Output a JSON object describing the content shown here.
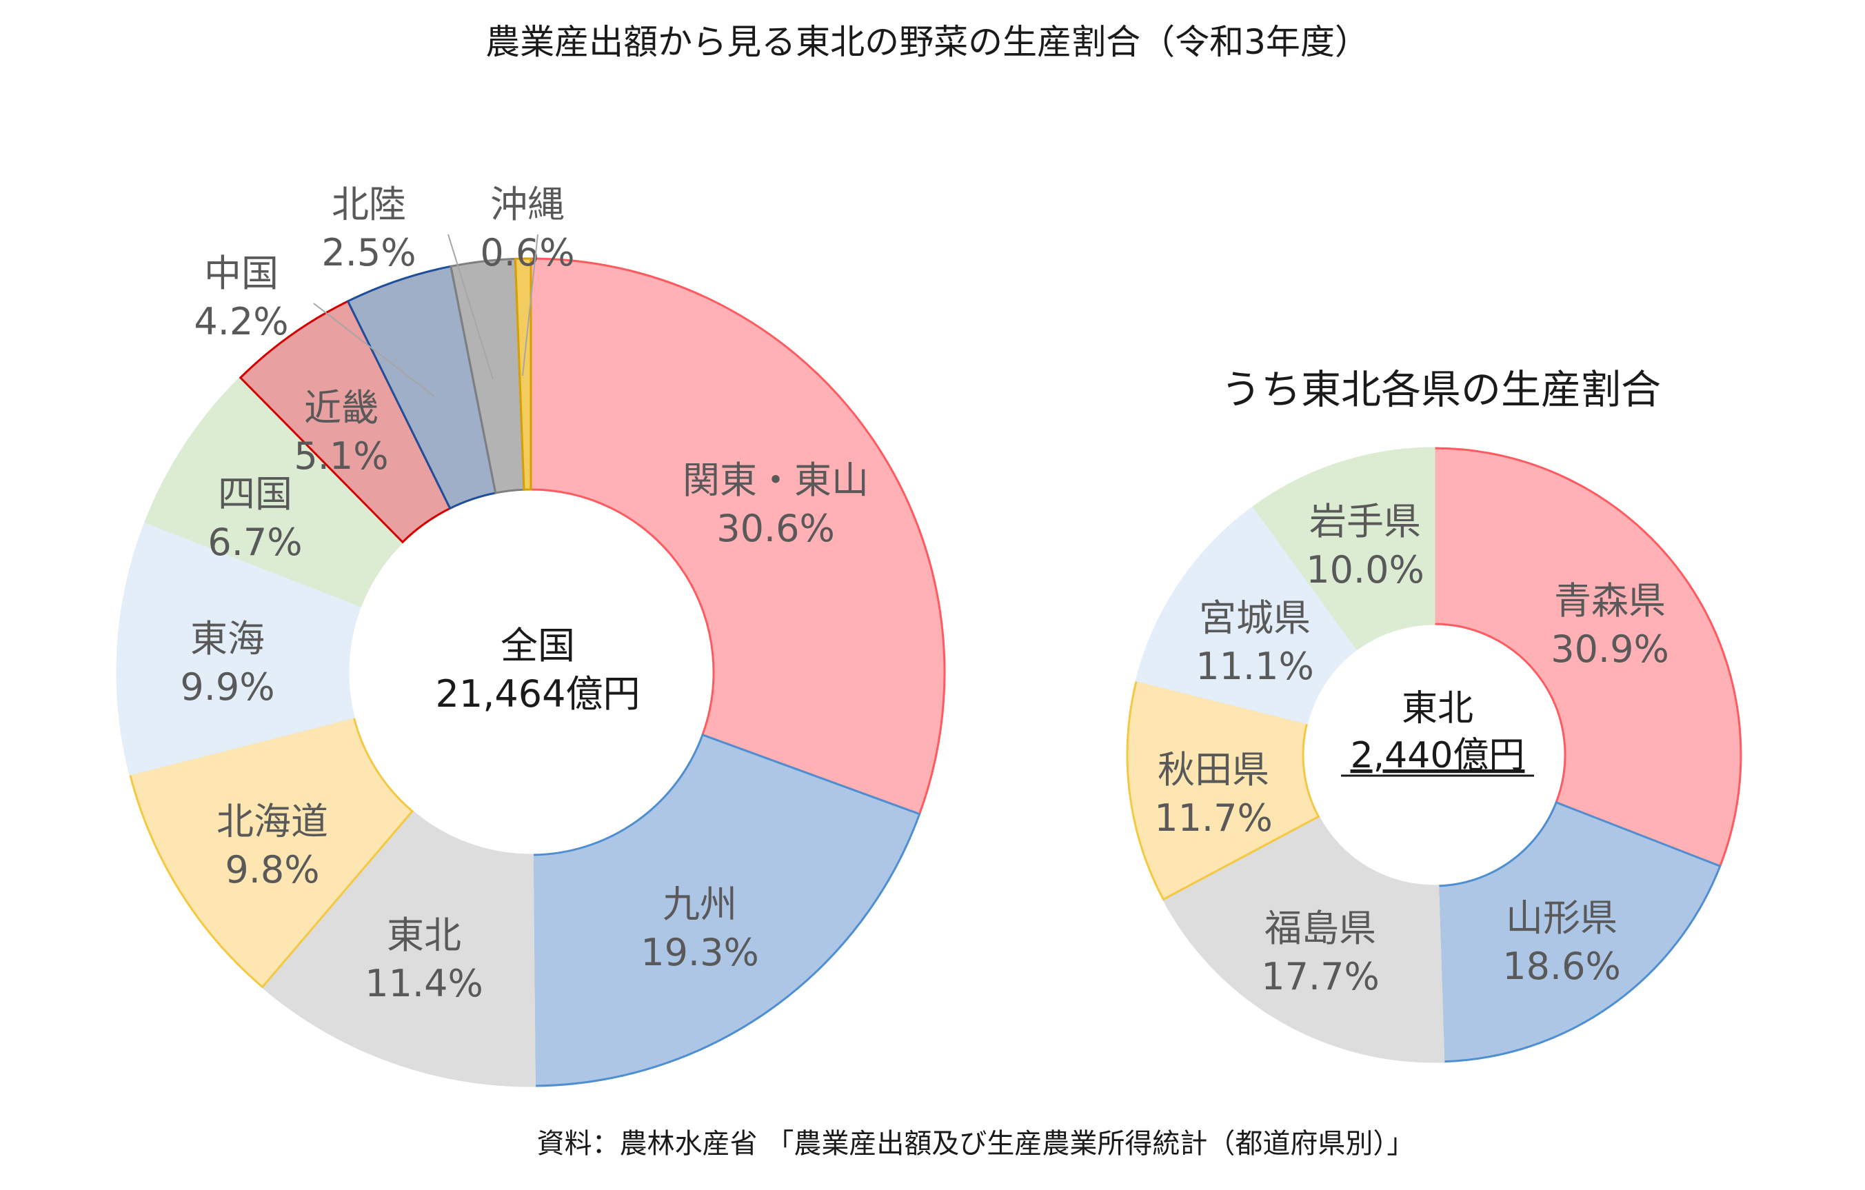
{
  "title": "農業産出額から見る東北の野菜の生産割合（令和3年度）",
  "source": "資料：農林水産省 「農業産出額及び生産農業所得統計（都道府県別）」",
  "chart_data": [
    {
      "type": "pie",
      "subtitle": "",
      "center_label": "全国",
      "center_value": "21,464億円",
      "slices": [
        {
          "label": "関東・東山",
          "value": 30.6,
          "value_text": "30.6%",
          "fill": "#ffb1b5",
          "stroke": "#ff5a5f"
        },
        {
          "label": "九州",
          "value": 19.3,
          "value_text": "19.3%",
          "fill": "#aec6e6",
          "stroke": "#4e8fd1"
        },
        {
          "label": "東北",
          "value": 11.4,
          "value_text": "11.4%",
          "fill": "#dddddd",
          "stroke": "#dddddd"
        },
        {
          "label": "北海道",
          "value": 9.8,
          "value_text": "9.8%",
          "fill": "#fde6b1",
          "stroke": "#f5c842"
        },
        {
          "label": "東海",
          "value": 9.9,
          "value_text": "9.9%",
          "fill": "#e3eef9",
          "stroke": "#e3eef9"
        },
        {
          "label": "四国",
          "value": 6.7,
          "value_text": "6.7%",
          "fill": "#dbecd3",
          "stroke": "#dbecd3"
        },
        {
          "label": "近畿",
          "value": 5.1,
          "value_text": "5.1%",
          "fill": "#e8a0a0",
          "stroke": "#d40000"
        },
        {
          "label": "中国",
          "value": 4.2,
          "value_text": "4.2%",
          "fill": "#9fafc7",
          "stroke": "#1f4e9a"
        },
        {
          "label": "北陸",
          "value": 2.5,
          "value_text": "2.5%",
          "fill": "#b3b3b3",
          "stroke": "#7f7f7f"
        },
        {
          "label": "沖縄",
          "value": 0.6,
          "value_text": "0.6%",
          "fill": "#f2cc5e",
          "stroke": "#d7a000"
        }
      ]
    },
    {
      "type": "pie",
      "subtitle": "うち東北各県の生産割合",
      "center_label": "東北",
      "center_value": "2,440億円",
      "slices": [
        {
          "label": "青森県",
          "value": 30.9,
          "value_text": "30.9%",
          "fill": "#ffb1b5",
          "stroke": "#ff5a5f"
        },
        {
          "label": "山形県",
          "value": 18.6,
          "value_text": "18.6%",
          "fill": "#aec6e6",
          "stroke": "#4e8fd1"
        },
        {
          "label": "福島県",
          "value": 17.7,
          "value_text": "17.7%",
          "fill": "#dddddd",
          "stroke": "#dddddd"
        },
        {
          "label": "秋田県",
          "value": 11.7,
          "value_text": "11.7%",
          "fill": "#fde6b1",
          "stroke": "#f5c842"
        },
        {
          "label": "宮城県",
          "value": 11.1,
          "value_text": "11.1%",
          "fill": "#e3eef9",
          "stroke": "#e3eef9"
        },
        {
          "label": "岩手県",
          "value": 10.0,
          "value_text": "10.0%",
          "fill": "#dbecd3",
          "stroke": "#dbecd3"
        }
      ]
    }
  ]
}
